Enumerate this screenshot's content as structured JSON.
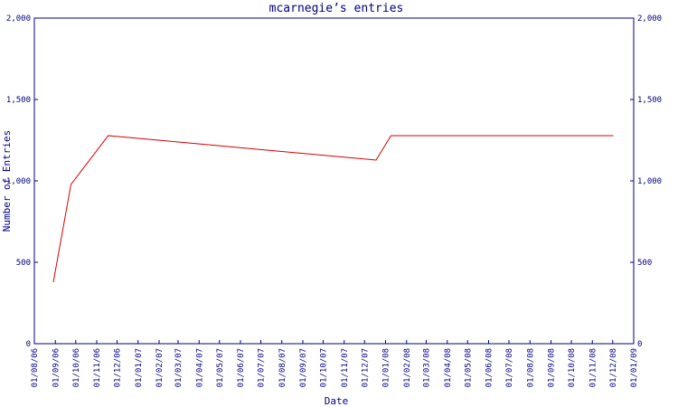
{
  "chart_data": {
    "type": "line",
    "title": "mcarnegie’s entries",
    "x_label": "Date",
    "y_label": "Number of Entries",
    "x": [
      "2006-08-29",
      "2006-09-24",
      "2006-11-18",
      "2007-12-18",
      "2008-01-09",
      "2008-12-02"
    ],
    "series": [
      {
        "name": "entries",
        "color": "#d40000",
        "values": [
          378,
          978,
          1278,
          1128,
          1278,
          1278
        ]
      }
    ],
    "xlim": [
      "2006-08-01",
      "2009-01-01"
    ],
    "xticks": [
      {
        "value": "2006-08-01",
        "label": "01/08/06"
      },
      {
        "value": "2006-09-01",
        "label": "01/09/06"
      },
      {
        "value": "2006-10-01",
        "label": "01/10/06"
      },
      {
        "value": "2006-11-01",
        "label": "01/11/06"
      },
      {
        "value": "2006-12-01",
        "label": "01/12/06"
      },
      {
        "value": "2007-01-01",
        "label": "01/01/07"
      },
      {
        "value": "2007-02-01",
        "label": "01/02/07"
      },
      {
        "value": "2007-03-01",
        "label": "01/03/07"
      },
      {
        "value": "2007-04-01",
        "label": "01/04/07"
      },
      {
        "value": "2007-05-01",
        "label": "01/05/07"
      },
      {
        "value": "2007-06-01",
        "label": "01/06/07"
      },
      {
        "value": "2007-07-01",
        "label": "01/07/07"
      },
      {
        "value": "2007-08-01",
        "label": "01/08/07"
      },
      {
        "value": "2007-09-01",
        "label": "01/09/07"
      },
      {
        "value": "2007-10-01",
        "label": "01/10/07"
      },
      {
        "value": "2007-11-01",
        "label": "01/11/07"
      },
      {
        "value": "2007-12-01",
        "label": "01/12/07"
      },
      {
        "value": "2008-01-01",
        "label": "01/01/08"
      },
      {
        "value": "2008-02-01",
        "label": "01/02/08"
      },
      {
        "value": "2008-03-01",
        "label": "01/03/08"
      },
      {
        "value": "2008-04-01",
        "label": "01/04/08"
      },
      {
        "value": "2008-05-01",
        "label": "01/05/08"
      },
      {
        "value": "2008-06-01",
        "label": "01/06/08"
      },
      {
        "value": "2008-07-01",
        "label": "01/07/08"
      },
      {
        "value": "2008-08-01",
        "label": "01/08/08"
      },
      {
        "value": "2008-09-01",
        "label": "01/09/08"
      },
      {
        "value": "2008-10-01",
        "label": "01/10/08"
      },
      {
        "value": "2008-11-01",
        "label": "01/11/08"
      },
      {
        "value": "2008-12-01",
        "label": "01/12/08"
      },
      {
        "value": "2009-01-01",
        "label": "01/01/09"
      }
    ],
    "ylim": [
      0,
      2000
    ],
    "yticks": [
      0,
      500,
      {
        "value": 1000,
        "label": "1,000"
      },
      {
        "value": 1500,
        "label": "1,500"
      },
      {
        "value": 2000,
        "label": "2,000"
      }
    ],
    "axis_color": "#000080"
  }
}
